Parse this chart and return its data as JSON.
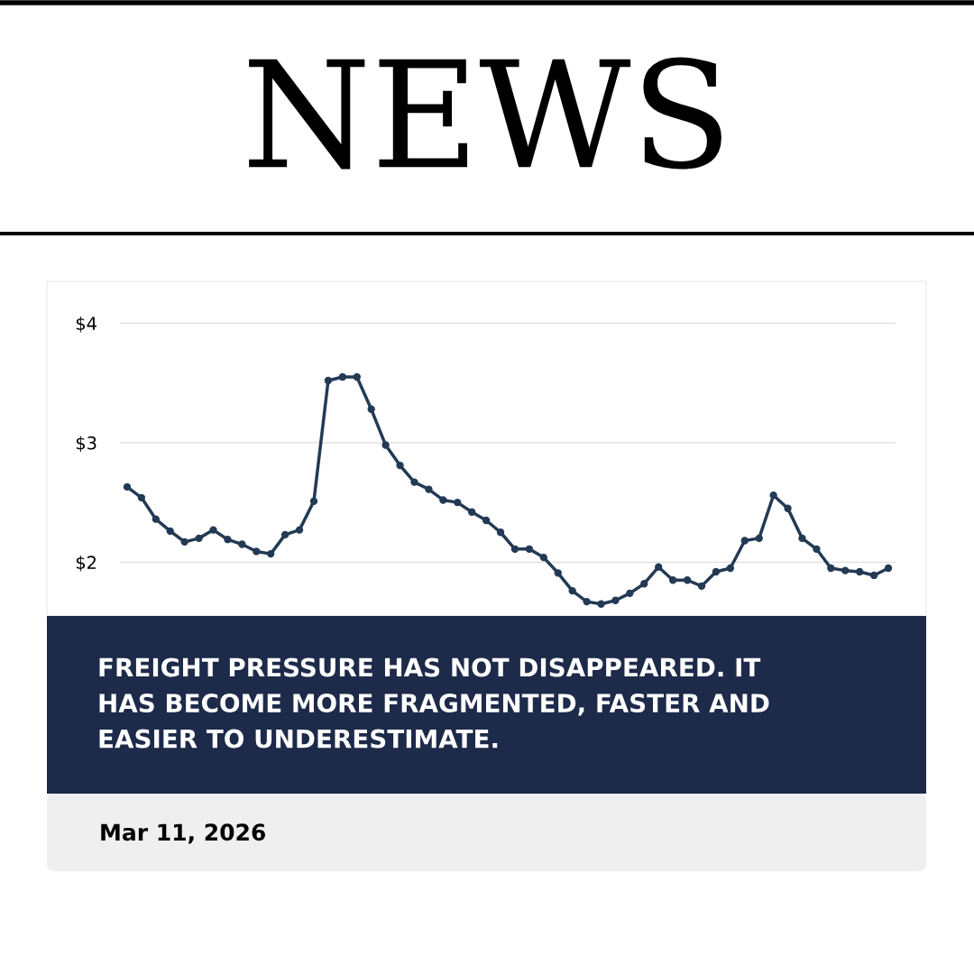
{
  "chart_data": {
    "type": "line",
    "title": "NEWS",
    "categories": [
      null,
      null,
      null,
      null,
      null,
      null,
      null,
      null,
      null,
      null,
      null,
      null,
      null,
      null,
      null,
      null,
      null,
      null,
      null,
      null,
      null,
      null,
      null,
      null,
      null,
      null,
      null,
      null,
      null,
      null,
      null,
      null,
      null,
      null,
      null,
      null,
      null,
      null,
      null,
      null,
      null,
      null,
      null,
      null,
      null,
      null,
      null,
      null,
      null,
      null,
      null,
      null,
      null,
      null
    ],
    "series": [
      {
        "color": "#233a54",
        "values": [
          2.63,
          2.54,
          2.36,
          2.26,
          2.17,
          2.2,
          2.27,
          2.19,
          2.15,
          2.09,
          2.07,
          2.23,
          2.27,
          2.51,
          3.52,
          3.55,
          3.55,
          3.28,
          2.98,
          2.81,
          2.67,
          2.61,
          2.52,
          2.5,
          2.42,
          2.35,
          2.25,
          2.11,
          2.11,
          2.04,
          1.91,
          1.76,
          1.67,
          1.65,
          1.68,
          1.74,
          1.82,
          1.96,
          1.85,
          1.85,
          1.8,
          1.92,
          1.95,
          2.18,
          2.2,
          2.56,
          2.45,
          2.2,
          2.11,
          1.95,
          1.93,
          1.92,
          1.89,
          1.95
        ]
      }
    ],
    "ylim": [
      1.55,
      4.35
    ],
    "yticks": [
      {
        "value": 2,
        "label": "$2"
      },
      {
        "value": 3,
        "label": "$3"
      },
      {
        "value": 4,
        "label": "$4"
      }
    ],
    "grid": "y",
    "marker": "circle",
    "line_style": "solid",
    "tick_labels": "y",
    "annotations": [
      "FREIGHT PRESSURE HAS NOT DISAPPEARED. IT\nHAS BECOME MORE FRAGMENTED, FASTER AND\nEASIER TO UNDERESTIMATE.",
      "Mar 11, 2026"
    ]
  }
}
